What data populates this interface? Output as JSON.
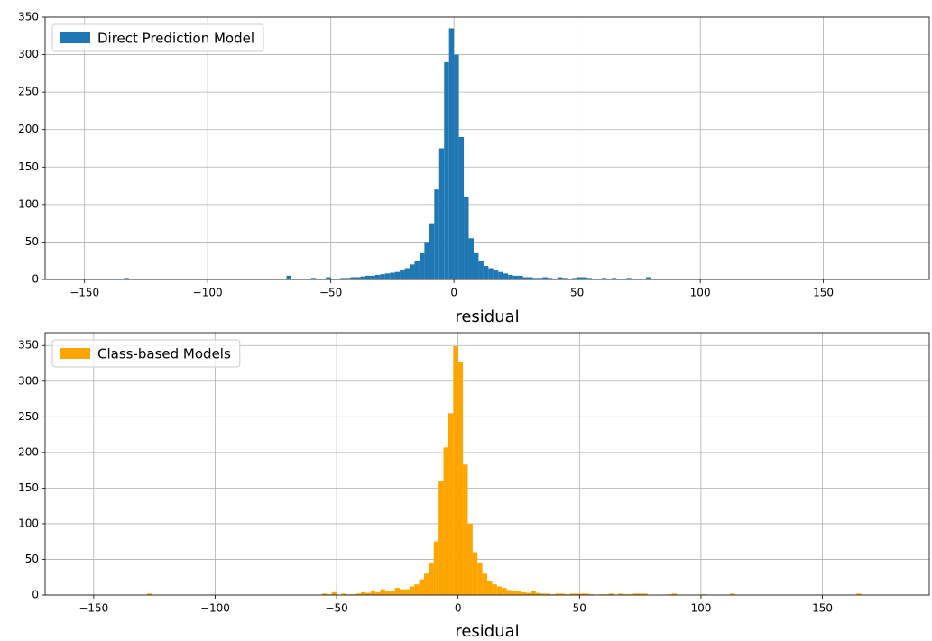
{
  "chart_data": [
    {
      "type": "histogram",
      "xlabel": "residual",
      "legend": "upper left",
      "grid": true,
      "series": [
        {
          "name": "Direct Prediction Model",
          "color": "#1f77b4"
        }
      ],
      "bins": [
        -134,
        -132,
        -130,
        -128,
        -126,
        -124,
        -122,
        -120,
        -118,
        -116,
        -114,
        -112,
        -110,
        -108,
        -106,
        -104,
        -102,
        -100,
        -98,
        -96,
        -94,
        -92,
        -90,
        -88,
        -86,
        -84,
        -82,
        -80,
        -78,
        -76,
        -74,
        -72,
        -70,
        -68,
        -66,
        -64,
        -62,
        -60,
        -58,
        -56,
        -54,
        -52,
        -50,
        -48,
        -46,
        -44,
        -42,
        -40,
        -38,
        -36,
        -34,
        -32,
        -30,
        -28,
        -26,
        -24,
        -22,
        -20,
        -18,
        -16,
        -14,
        -12,
        -10,
        -8,
        -6,
        -4,
        -2,
        0,
        2,
        4,
        6,
        8,
        10,
        12,
        14,
        16,
        18,
        20,
        22,
        24,
        26,
        28,
        30,
        32,
        34,
        36,
        38,
        40,
        42,
        44,
        46,
        48,
        50,
        52,
        54,
        56,
        58,
        60,
        62,
        64,
        66,
        68,
        70,
        72,
        74,
        76,
        78,
        80,
        82,
        84,
        86,
        88,
        90,
        92,
        94,
        96,
        98,
        100,
        102
      ],
      "counts": [
        2,
        0,
        0,
        0,
        0,
        0,
        0,
        0,
        0,
        0,
        0,
        0,
        0,
        0,
        0,
        0,
        0,
        0,
        0,
        0,
        0,
        0,
        0,
        0,
        0,
        0,
        0,
        0,
        0,
        0,
        0,
        0,
        0,
        5,
        0,
        0,
        0,
        0,
        2,
        1,
        0,
        3,
        1,
        1,
        2,
        2,
        3,
        3,
        4,
        5,
        5,
        6,
        7,
        8,
        9,
        10,
        12,
        15,
        20,
        25,
        35,
        50,
        75,
        120,
        175,
        290,
        335,
        300,
        190,
        110,
        55,
        35,
        25,
        18,
        15,
        12,
        10,
        8,
        6,
        5,
        5,
        3,
        3,
        2,
        2,
        3,
        2,
        1,
        3,
        2,
        1,
        2,
        3,
        3,
        2,
        1,
        1,
        2,
        1,
        2,
        0,
        0,
        2,
        0,
        0,
        0,
        3,
        0,
        0,
        0,
        0,
        0,
        0,
        0,
        0,
        0,
        0,
        1
      ],
      "xlim": [
        -166,
        193
      ],
      "xticks": [
        {
          "value": -150,
          "label": "−150"
        },
        {
          "value": -100,
          "label": "−100"
        },
        {
          "value": -50,
          "label": "−50"
        },
        0,
        50,
        100,
        150
      ],
      "ylim": [
        0,
        350
      ],
      "yticks": [
        0,
        50,
        100,
        150,
        200,
        250,
        300,
        350
      ]
    },
    {
      "type": "histogram",
      "xlabel": "residual",
      "legend": "upper left",
      "grid": true,
      "series": [
        {
          "name": "Class-based Models",
          "color": "#ffa500"
        }
      ],
      "bins": [
        -128,
        -126,
        -124,
        -122,
        -120,
        -118,
        -116,
        -114,
        -112,
        -110,
        -108,
        -106,
        -104,
        -102,
        -100,
        -98,
        -96,
        -94,
        -92,
        -90,
        -88,
        -86,
        -84,
        -82,
        -80,
        -78,
        -76,
        -74,
        -72,
        -70,
        -68,
        -66,
        -64,
        -62,
        -60,
        -58,
        -56,
        -54,
        -52,
        -50,
        -48,
        -46,
        -44,
        -42,
        -40,
        -38,
        -36,
        -34,
        -32,
        -30,
        -28,
        -26,
        -24,
        -22,
        -20,
        -18,
        -16,
        -14,
        -12,
        -10,
        -8,
        -6,
        -4,
        -2,
        0,
        2,
        4,
        6,
        8,
        10,
        12,
        14,
        16,
        18,
        20,
        22,
        24,
        26,
        28,
        30,
        32,
        34,
        36,
        38,
        40,
        42,
        44,
        46,
        48,
        50,
        52,
        54,
        56,
        58,
        60,
        62,
        64,
        66,
        68,
        70,
        72,
        74,
        76,
        78,
        80,
        82,
        84,
        86,
        88,
        90,
        92,
        94,
        96,
        98,
        100,
        102,
        104,
        106,
        108,
        110,
        112,
        114,
        116,
        118,
        120,
        122,
        124,
        126,
        128,
        130,
        132,
        134,
        136,
        138,
        140,
        142,
        144,
        146,
        148,
        150,
        152,
        154,
        156,
        158,
        160,
        162,
        164,
        166
      ],
      "counts": [
        2,
        0,
        0,
        0,
        0,
        0,
        0,
        0,
        0,
        0,
        0,
        0,
        0,
        0,
        0,
        0,
        0,
        0,
        0,
        0,
        0,
        0,
        0,
        0,
        0,
        0,
        0,
        0,
        0,
        0,
        0,
        0,
        0,
        0,
        0,
        0,
        2,
        1,
        4,
        0,
        2,
        1,
        1,
        2,
        4,
        3,
        5,
        4,
        8,
        5,
        6,
        10,
        8,
        8,
        12,
        15,
        22,
        30,
        45,
        75,
        160,
        207,
        255,
        349,
        327,
        183,
        100,
        60,
        45,
        30,
        20,
        15,
        12,
        10,
        7,
        5,
        5,
        4,
        3,
        6,
        3,
        2,
        2,
        1,
        2,
        2,
        1,
        2,
        2,
        2,
        2,
        1,
        0,
        1,
        1,
        2,
        0,
        2,
        1,
        1,
        2,
        2,
        2,
        0,
        0,
        0,
        0,
        1,
        2,
        0,
        0,
        0,
        0,
        0,
        1,
        0,
        0,
        0,
        0,
        0,
        2,
        0,
        0,
        0,
        0,
        0,
        0,
        0,
        0,
        0,
        0,
        0,
        0,
        0,
        0,
        0,
        0,
        0,
        0,
        0,
        0,
        0,
        0,
        0,
        0,
        0,
        2
      ],
      "xlim": [
        -170,
        194
      ],
      "xticks": [
        {
          "value": -150,
          "label": "−150"
        },
        {
          "value": -100,
          "label": "−100"
        },
        {
          "value": -50,
          "label": "−50"
        },
        0,
        50,
        100,
        150
      ],
      "ylim": [
        0,
        368
      ],
      "yticks": [
        0,
        50,
        100,
        150,
        200,
        250,
        300,
        350
      ]
    }
  ]
}
